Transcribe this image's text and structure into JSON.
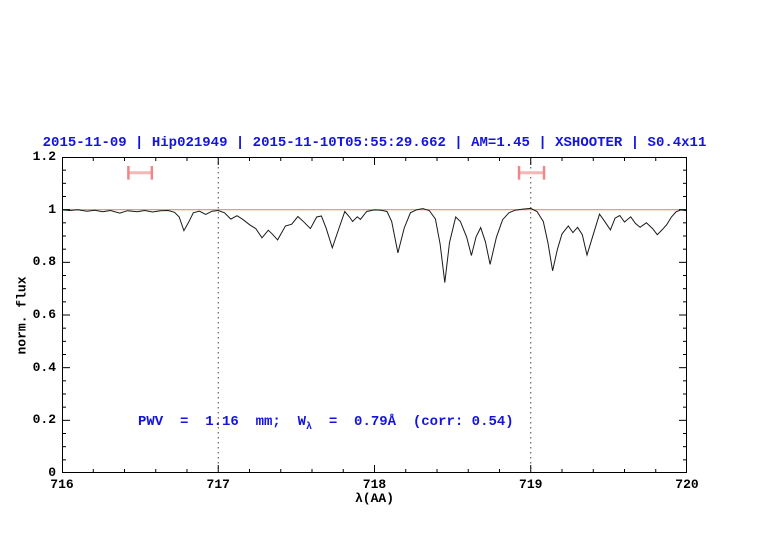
{
  "title": "2015-11-09 | Hip021949 | 2015-11-10T05:55:29.662 | AM=1.45 | XSHOOTER | S0.4x11",
  "annotation": {
    "prefix": "PWV  =  1.16  mm;  W",
    "subscript": "λ",
    "suffix": "  =  0.79Å  (corr: 0.54)"
  },
  "colors": {
    "title_blue": "#1414dd",
    "annotation_blue": "#1414dd",
    "continuum_red": "#f08585",
    "marker_cap_red": "#ee8888",
    "marker_bar_red": "#f6b6b6",
    "spectrum_black": "#1a1a1a",
    "guide_gray": "#444444",
    "frame_black": "#000000"
  },
  "chart_data": {
    "type": "line",
    "title": "2015-11-09 | Hip021949 | 2015-11-10T05:55:29.662 | AM=1.45 | XSHOOTER | S0.4x11",
    "xlabel": "λ(AA)",
    "ylabel": "norm. flux",
    "xlim": [
      716,
      720
    ],
    "ylim": [
      0,
      1.2
    ],
    "grid": false,
    "x_tick_labels": [
      "716",
      "717",
      "718",
      "719",
      "720"
    ],
    "x_major_ticks": [
      716,
      717,
      718,
      719,
      720
    ],
    "x_minor_step": 0.2,
    "y_tick_labels": [
      "0",
      "0.2",
      "0.4",
      "0.6",
      "0.8",
      "1",
      "1.2"
    ],
    "y_major_ticks": [
      0,
      0.2,
      0.4,
      0.6,
      0.8,
      1.0,
      1.2
    ],
    "y_minor_step": 0.05,
    "guides_x_dotted": [
      717,
      719
    ],
    "continuum_level": 1.0,
    "range_markers": [
      {
        "name": "left-band-marker",
        "x_min": 716.425,
        "x_max": 716.575,
        "y": 1.14,
        "cap_half_height_flux": 0.026
      },
      {
        "name": "right-band-marker",
        "x_min": 718.925,
        "x_max": 719.085,
        "y": 1.14,
        "cap_half_height_flux": 0.026
      }
    ],
    "series": [
      {
        "name": "normalized telluric spectrum",
        "points": [
          [
            716.0,
            0.999
          ],
          [
            716.05,
            0.997
          ],
          [
            716.1,
            1.0
          ],
          [
            716.16,
            0.994
          ],
          [
            716.21,
            0.998
          ],
          [
            716.26,
            0.992
          ],
          [
            716.31,
            0.997
          ],
          [
            716.37,
            0.987
          ],
          [
            716.42,
            0.996
          ],
          [
            716.48,
            0.992
          ],
          [
            716.53,
            0.997
          ],
          [
            716.58,
            0.991
          ],
          [
            716.63,
            0.996
          ],
          [
            716.68,
            0.997
          ],
          [
            716.72,
            0.99
          ],
          [
            716.75,
            0.972
          ],
          [
            716.78,
            0.92
          ],
          [
            716.81,
            0.952
          ],
          [
            716.84,
            0.988
          ],
          [
            716.88,
            0.994
          ],
          [
            716.92,
            0.982
          ],
          [
            716.96,
            0.994
          ],
          [
            717.0,
            0.997
          ],
          [
            717.04,
            0.988
          ],
          [
            717.08,
            0.964
          ],
          [
            717.12,
            0.977
          ],
          [
            717.16,
            0.962
          ],
          [
            717.2,
            0.943
          ],
          [
            717.24,
            0.928
          ],
          [
            717.28,
            0.893
          ],
          [
            717.32,
            0.922
          ],
          [
            717.35,
            0.905
          ],
          [
            717.38,
            0.885
          ],
          [
            717.43,
            0.938
          ],
          [
            717.47,
            0.945
          ],
          [
            717.51,
            0.974
          ],
          [
            717.55,
            0.952
          ],
          [
            717.59,
            0.928
          ],
          [
            717.63,
            0.972
          ],
          [
            717.66,
            0.976
          ],
          [
            717.69,
            0.93
          ],
          [
            717.73,
            0.855
          ],
          [
            717.77,
            0.925
          ],
          [
            717.81,
            0.993
          ],
          [
            717.84,
            0.972
          ],
          [
            717.86,
            0.955
          ],
          [
            717.89,
            0.973
          ],
          [
            717.91,
            0.963
          ],
          [
            717.95,
            0.993
          ],
          [
            718.0,
            0.999
          ],
          [
            718.04,
            0.998
          ],
          [
            718.08,
            0.993
          ],
          [
            718.11,
            0.955
          ],
          [
            718.15,
            0.836
          ],
          [
            718.19,
            0.93
          ],
          [
            718.23,
            0.988
          ],
          [
            718.27,
            1.0
          ],
          [
            718.31,
            1.004
          ],
          [
            718.35,
            0.997
          ],
          [
            718.39,
            0.965
          ],
          [
            718.42,
            0.87
          ],
          [
            718.45,
            0.723
          ],
          [
            718.48,
            0.875
          ],
          [
            718.52,
            0.972
          ],
          [
            718.55,
            0.955
          ],
          [
            718.59,
            0.895
          ],
          [
            718.62,
            0.826
          ],
          [
            718.65,
            0.897
          ],
          [
            718.68,
            0.932
          ],
          [
            718.71,
            0.878
          ],
          [
            718.74,
            0.792
          ],
          [
            718.78,
            0.895
          ],
          [
            718.82,
            0.962
          ],
          [
            718.86,
            0.988
          ],
          [
            718.9,
            0.998
          ],
          [
            718.95,
            1.002
          ],
          [
            719.0,
            1.005
          ],
          [
            719.04,
            0.993
          ],
          [
            719.08,
            0.955
          ],
          [
            719.11,
            0.875
          ],
          [
            719.14,
            0.768
          ],
          [
            719.17,
            0.848
          ],
          [
            719.2,
            0.908
          ],
          [
            719.24,
            0.938
          ],
          [
            719.27,
            0.913
          ],
          [
            719.3,
            0.933
          ],
          [
            719.33,
            0.905
          ],
          [
            719.36,
            0.828
          ],
          [
            719.4,
            0.905
          ],
          [
            719.44,
            0.983
          ],
          [
            719.47,
            0.958
          ],
          [
            719.51,
            0.923
          ],
          [
            719.54,
            0.968
          ],
          [
            719.57,
            0.978
          ],
          [
            719.6,
            0.953
          ],
          [
            719.64,
            0.973
          ],
          [
            719.67,
            0.948
          ],
          [
            719.7,
            0.933
          ],
          [
            719.74,
            0.95
          ],
          [
            719.78,
            0.928
          ],
          [
            719.81,
            0.905
          ],
          [
            719.84,
            0.923
          ],
          [
            719.87,
            0.943
          ],
          [
            719.9,
            0.972
          ],
          [
            719.93,
            0.992
          ],
          [
            719.96,
            0.999
          ],
          [
            720.0,
            0.996
          ]
        ]
      }
    ]
  }
}
